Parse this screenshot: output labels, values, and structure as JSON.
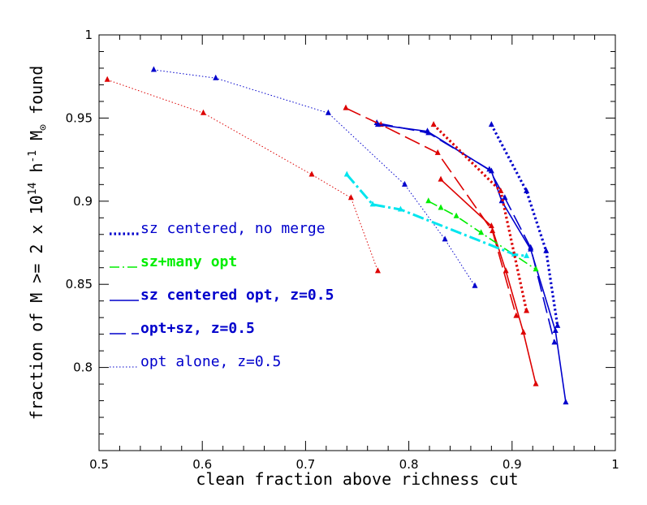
{
  "chart_data": {
    "type": "line",
    "xlabel": "clean fraction above richness cut",
    "ylabel": "fraction of M >= 2 x 10",
    "ylabel_exp1": "14",
    "ylabel_mid": " h",
    "ylabel_exp2": "-1",
    "ylabel_tail": " M",
    "ylabel_sub": "⊙",
    "ylabel_end": " found",
    "xlim": [
      0.5,
      1.0
    ],
    "ylim": [
      0.75,
      1.0
    ],
    "xticks": [
      "0.5",
      "0.6",
      "0.7",
      "0.8",
      "0.9",
      "1"
    ],
    "yticks": [
      "0.8",
      "0.85",
      "0.9",
      "0.95",
      "1"
    ],
    "grid": false,
    "legend_position": "left",
    "legend": [
      {
        "label": "sz centered, no merge",
        "color": "#0000cc",
        "style": "dotted-thick",
        "bold": false
      },
      {
        "label": "sz+many opt",
        "color": "#00ee00",
        "style": "dashdot",
        "bold": true
      },
      {
        "label": "sz centered opt, z=0.5",
        "color": "#0000cc",
        "style": "solid",
        "bold": true
      },
      {
        "label": "opt+sz, z=0.5",
        "color": "#0000cc",
        "style": "longdash",
        "bold": true
      },
      {
        "label": "opt alone, z=0.5",
        "color": "#0000cc",
        "style": "dotted-thin",
        "bold": false
      }
    ],
    "series": [
      {
        "color": "#0000cc",
        "style": "dotted-thin",
        "x": [
          0.553,
          0.613,
          0.722,
          0.796,
          0.835,
          0.864
        ],
        "y": [
          0.979,
          0.974,
          0.953,
          0.91,
          0.877,
          0.849
        ]
      },
      {
        "color": "#dd0000",
        "style": "dotted-thin",
        "x": [
          0.508,
          0.601,
          0.706,
          0.744,
          0.77
        ],
        "y": [
          0.973,
          0.953,
          0.916,
          0.902,
          0.858
        ]
      },
      {
        "color": "#0000cc",
        "style": "longdash",
        "x": [
          0.769,
          0.819,
          0.878,
          0.893,
          0.918,
          0.941
        ],
        "y": [
          0.947,
          0.941,
          0.919,
          0.902,
          0.872,
          0.815
        ]
      },
      {
        "color": "#dd0000",
        "style": "longdash",
        "x": [
          0.739,
          0.773,
          0.828,
          0.881,
          0.904
        ],
        "y": [
          0.956,
          0.946,
          0.929,
          0.882,
          0.831
        ]
      },
      {
        "color": "#0000cc",
        "style": "solid",
        "x": [
          0.77,
          0.818,
          0.88,
          0.89,
          0.918,
          0.942,
          0.952
        ],
        "y": [
          0.946,
          0.942,
          0.918,
          0.9,
          0.871,
          0.822,
          0.779
        ]
      },
      {
        "color": "#dd0000",
        "style": "solid",
        "x": [
          0.831,
          0.88,
          0.894,
          0.911,
          0.923
        ],
        "y": [
          0.913,
          0.885,
          0.858,
          0.821,
          0.79
        ]
      },
      {
        "color": "#00ee00",
        "style": "dashdot",
        "x": [
          0.819,
          0.831,
          0.846,
          0.87,
          0.923
        ],
        "y": [
          0.9,
          0.896,
          0.891,
          0.881,
          0.859
        ]
      },
      {
        "color": "#00e5ee",
        "style": "dashdot-thick",
        "x": [
          0.74,
          0.765,
          0.792,
          0.902,
          0.914
        ],
        "y": [
          0.916,
          0.898,
          0.895,
          0.868,
          0.867
        ]
      },
      {
        "color": "#0000cc",
        "style": "dotted-thick",
        "x": [
          0.88,
          0.914,
          0.933,
          0.944
        ],
        "y": [
          0.946,
          0.906,
          0.87,
          0.825
        ]
      },
      {
        "color": "#dd0000",
        "style": "dotted-thick",
        "x": [
          0.824,
          0.889,
          0.914
        ],
        "y": [
          0.946,
          0.906,
          0.834
        ]
      }
    ]
  }
}
